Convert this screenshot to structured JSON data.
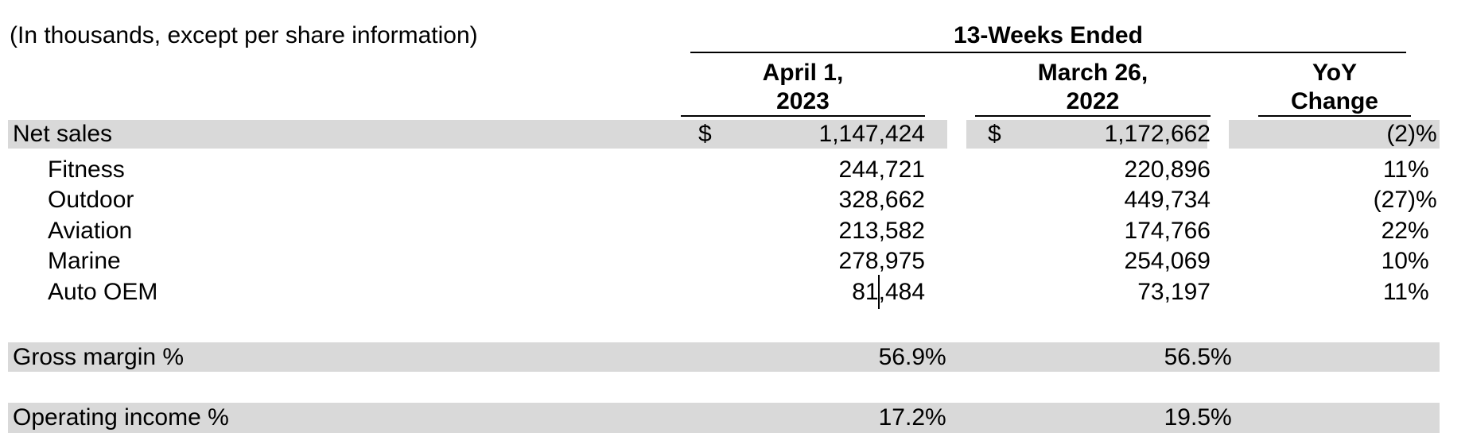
{
  "caption": "(In thousands, except per share information)",
  "table": {
    "period_header": "13-Weeks Ended",
    "columns": [
      {
        "id": "april-1-2023",
        "line1": "April 1,",
        "line2": "2023"
      },
      {
        "id": "march-26-2022",
        "line1": "March 26,",
        "line2": "2022"
      },
      {
        "id": "yoy-change",
        "line1": "YoY",
        "line2": "Change"
      }
    ],
    "rows": [
      {
        "id": "net-sales",
        "label": "Net sales",
        "indent": false,
        "shading": "segmented",
        "cols": [
          {
            "prefix": "$",
            "num": "1,147,424",
            "suffix": ""
          },
          {
            "prefix": "$",
            "num": "1,172,662",
            "suffix": ""
          },
          {
            "num": "(2",
            "suffix": ")%"
          }
        ]
      },
      {
        "id": "fitness",
        "label": "Fitness",
        "indent": true,
        "shading": "none",
        "cols": [
          {
            "num": "244,721",
            "suffix": ""
          },
          {
            "num": "220,896",
            "suffix": ""
          },
          {
            "num": "11",
            "suffix": "%"
          }
        ]
      },
      {
        "id": "outdoor",
        "label": "Outdoor",
        "indent": true,
        "shading": "none",
        "cols": [
          {
            "num": "328,662",
            "suffix": ""
          },
          {
            "num": "449,734",
            "suffix": ""
          },
          {
            "num": "(27",
            "suffix": ")%"
          }
        ]
      },
      {
        "id": "aviation",
        "label": "Aviation",
        "indent": true,
        "shading": "none",
        "cols": [
          {
            "num": "213,582",
            "suffix": ""
          },
          {
            "num": "174,766",
            "suffix": ""
          },
          {
            "num": "22",
            "suffix": "%"
          }
        ]
      },
      {
        "id": "marine",
        "label": "Marine",
        "indent": true,
        "shading": "none",
        "cols": [
          {
            "num": "278,975",
            "suffix": ""
          },
          {
            "num": "254,069",
            "suffix": ""
          },
          {
            "num": "10",
            "suffix": "%"
          }
        ]
      },
      {
        "id": "auto-oem",
        "label": "Auto OEM",
        "indent": true,
        "shading": "none",
        "cols": [
          {
            "num": "81,484",
            "suffix": "",
            "caret_after": "81"
          },
          {
            "num": "73,197",
            "suffix": ""
          },
          {
            "num": "11",
            "suffix": "%"
          }
        ]
      },
      {
        "id": "gross-margin",
        "label": "Gross margin %",
        "indent": false,
        "shading": "full",
        "cols": [
          {
            "num": "56.9",
            "suffix": "%"
          },
          {
            "num": "56.5",
            "suffix": "%"
          },
          null
        ]
      },
      {
        "id": "operating-income",
        "label": "Operating income %",
        "indent": false,
        "shading": "full",
        "cols": [
          {
            "num": "17.2",
            "suffix": "%"
          },
          {
            "num": "19.5",
            "suffix": "%"
          },
          null
        ]
      }
    ]
  },
  "cursor": {
    "visible": true,
    "location": "between '81' and ',484' in the Auto OEM April 1, 2023 cell"
  },
  "colors": {
    "row_shade": "#d9d9d9",
    "rule": "#000000",
    "text": "#000000",
    "background": "#ffffff"
  }
}
